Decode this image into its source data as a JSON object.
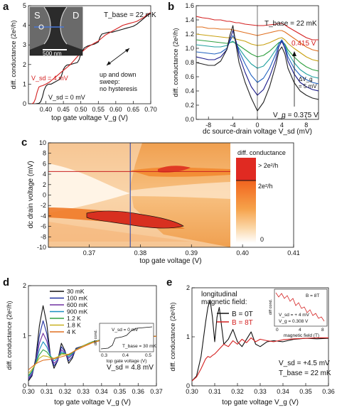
{
  "chart_data": [
    {
      "panel": "a",
      "type": "line",
      "xlabel": "top gate voltage V_g (V)",
      "ylabel": "diff. conductance (2e²/h)",
      "xlim": [
        0.35,
        0.7
      ],
      "ylim": [
        0,
        5
      ],
      "xticks": [
        "0.40",
        "0.45",
        "0.50",
        "0.55",
        "0.60",
        "0.65",
        "0.70"
      ],
      "yticks": [
        "0",
        "1",
        "2",
        "3",
        "4",
        "5"
      ],
      "series": [
        {
          "name": "V_sd = 0 mV",
          "color": "#111111",
          "x": [
            0.37,
            0.38,
            0.385,
            0.39,
            0.395,
            0.4,
            0.405,
            0.41,
            0.415,
            0.42,
            0.43,
            0.44,
            0.445,
            0.45,
            0.455,
            0.46,
            0.47,
            0.48,
            0.49,
            0.495,
            0.5,
            0.51,
            0.52,
            0.53,
            0.54,
            0.55,
            0.555,
            0.56,
            0.57,
            0.58,
            0.59,
            0.6,
            0.61,
            0.62,
            0.63,
            0.64,
            0.65,
            0.66,
            0.67,
            0.68,
            0.69,
            0.7
          ],
          "y": [
            0.0,
            0.02,
            0.1,
            0.35,
            0.7,
            0.9,
            0.98,
            1.0,
            1.0,
            1.05,
            1.15,
            1.25,
            1.45,
            1.75,
            1.9,
            1.97,
            2.0,
            2.05,
            2.1,
            2.25,
            2.55,
            2.85,
            2.95,
            3.0,
            3.05,
            3.15,
            3.4,
            3.55,
            3.6,
            3.65,
            3.65,
            3.7,
            3.75,
            3.8,
            3.85,
            3.9,
            3.95,
            4.05,
            4.2,
            4.35,
            4.5,
            4.6
          ]
        },
        {
          "name": "V_sd = 4 mV",
          "color": "#d42020",
          "x": [
            0.36,
            0.365,
            0.37,
            0.375,
            0.38,
            0.385,
            0.39,
            0.395,
            0.4,
            0.405,
            0.41,
            0.42,
            0.43,
            0.44,
            0.45,
            0.46,
            0.47,
            0.48,
            0.49,
            0.5,
            0.51,
            0.52,
            0.53,
            0.54,
            0.55,
            0.56,
            0.57,
            0.58,
            0.59,
            0.6,
            0.61,
            0.62,
            0.63,
            0.64,
            0.65,
            0.66,
            0.67,
            0.68,
            0.69,
            0.7
          ],
          "y": [
            0.0,
            0.05,
            0.25,
            0.6,
            0.85,
            0.9,
            0.92,
            0.96,
            1.0,
            1.05,
            1.1,
            1.25,
            1.4,
            1.55,
            1.7,
            1.85,
            2.0,
            2.2,
            2.4,
            2.6,
            2.75,
            2.9,
            3.0,
            3.1,
            3.2,
            3.35,
            3.5,
            3.6,
            3.7,
            3.8,
            3.9,
            4.0,
            4.05,
            4.1,
            4.15,
            4.2,
            4.3,
            4.4,
            4.55,
            4.65
          ]
        }
      ],
      "annotations": [
        "T_base = 22 mK",
        "V_sd = 4 mV",
        "V_sd = 0 mV",
        "up and down",
        "sweep:",
        "no hysteresis",
        "S",
        "D",
        "500 nm"
      ]
    },
    {
      "panel": "b",
      "type": "line",
      "xlabel": "dc source-drain voltage V_sd (mV)",
      "ylabel": "diff. conductance (2e²/h)",
      "xlim": [
        -10,
        10
      ],
      "ylim": [
        0,
        1.6
      ],
      "xticks": [
        "-8",
        "-4",
        "0",
        "4",
        "8"
      ],
      "yticks": [
        "0.0",
        "0.2",
        "0.4",
        "0.6",
        "0.8",
        "1.0",
        "1.2",
        "1.4",
        "1.6"
      ],
      "x": [
        -10,
        -9,
        -8,
        -7,
        -6,
        -5,
        -4.5,
        -4,
        -3.5,
        -3,
        -2,
        -1,
        0,
        1,
        2,
        3,
        3.5,
        4,
        4.5,
        5,
        6,
        7,
        8,
        9,
        10
      ],
      "series": [
        {
          "color": "#d42020",
          "values": [
            1.45,
            1.43,
            1.42,
            1.4,
            1.4,
            1.38,
            1.38,
            1.37,
            1.36,
            1.36,
            1.34,
            1.33,
            1.32,
            1.32,
            1.33,
            1.34,
            1.35,
            1.35,
            1.33,
            1.3,
            1.25,
            1.2,
            1.15,
            1.12,
            1.12
          ]
        },
        {
          "color": "#e07020",
          "values": [
            1.3,
            1.3,
            1.28,
            1.28,
            1.27,
            1.27,
            1.27,
            1.26,
            1.25,
            1.24,
            1.22,
            1.2,
            1.18,
            1.2,
            1.22,
            1.24,
            1.25,
            1.25,
            1.23,
            1.2,
            1.14,
            1.08,
            1.02,
            0.98,
            0.96
          ]
        },
        {
          "color": "#c8a010",
          "values": [
            1.2,
            1.19,
            1.18,
            1.17,
            1.16,
            1.15,
            1.15,
            1.15,
            1.13,
            1.12,
            1.1,
            1.06,
            1.04,
            1.05,
            1.08,
            1.12,
            1.14,
            1.15,
            1.12,
            1.07,
            1.0,
            0.94,
            0.88,
            0.84,
            0.82
          ]
        },
        {
          "color": "#30a040",
          "values": [
            1.12,
            1.11,
            1.1,
            1.09,
            1.08,
            1.07,
            1.08,
            1.09,
            1.07,
            1.04,
            0.98,
            0.92,
            0.88,
            0.9,
            0.96,
            1.04,
            1.08,
            1.1,
            1.06,
            0.98,
            0.88,
            0.8,
            0.74,
            0.7,
            0.68
          ]
        },
        {
          "color": "#20a0a0",
          "values": [
            1.05,
            1.04,
            1.03,
            1.02,
            1.02,
            1.04,
            1.08,
            1.1,
            1.06,
            1.0,
            0.88,
            0.78,
            0.72,
            0.75,
            0.85,
            0.98,
            1.06,
            1.1,
            1.04,
            0.94,
            0.8,
            0.7,
            0.64,
            0.6,
            0.58
          ]
        },
        {
          "color": "#2060c0",
          "values": [
            0.95,
            0.94,
            0.93,
            0.92,
            0.94,
            1.0,
            1.1,
            1.18,
            1.1,
            0.96,
            0.78,
            0.62,
            0.52,
            0.58,
            0.72,
            0.92,
            1.06,
            1.12,
            1.04,
            0.88,
            0.72,
            0.62,
            0.56,
            0.52,
            0.5
          ]
        },
        {
          "color": "#1a1a8a",
          "values": [
            0.88,
            0.86,
            0.84,
            0.84,
            0.88,
            0.98,
            1.12,
            1.25,
            1.1,
            0.9,
            0.66,
            0.46,
            0.34,
            0.42,
            0.6,
            0.84,
            1.02,
            1.1,
            1.0,
            0.82,
            0.64,
            0.52,
            0.46,
            0.42,
            0.4
          ]
        },
        {
          "color": "#222222",
          "values": [
            0.8,
            0.78,
            0.76,
            0.76,
            0.82,
            0.98,
            1.18,
            1.32,
            1.05,
            0.8,
            0.52,
            0.3,
            0.12,
            0.24,
            0.46,
            0.76,
            0.96,
            1.02,
            0.92,
            0.72,
            0.52,
            0.4,
            0.34,
            0.3,
            0.28
          ]
        }
      ],
      "annotations": [
        "T_base = 22 mK",
        "0.415 V",
        "ΔV_g",
        "= 5 mV",
        "V_g = 0.375 V"
      ]
    },
    {
      "panel": "c",
      "type": "heatmap",
      "xlabel": "top gate voltage (V)",
      "ylabel": "dc drain voltage (mV)",
      "xlim": [
        0.362,
        0.41
      ],
      "ylim": [
        -10,
        10
      ],
      "xticks": [
        "0.37",
        "0.38",
        "0.39",
        "0.40",
        "0.41"
      ],
      "yticks": [
        "10",
        "8",
        "6",
        "4",
        "2",
        "0",
        "-2",
        "-4",
        "-6",
        "-8",
        "-10"
      ],
      "cut_x": 0.38,
      "cut_y": 4,
      "colorbar": {
        "title": "diff. conductance",
        "labels": [
          "> 2e²/h",
          "2e²/h",
          "0"
        ]
      }
    },
    {
      "panel": "d",
      "type": "line",
      "xlabel": "top gate voltage V_g (V)",
      "ylabel": "diff. conductance (2e²/h)",
      "xlim": [
        0.3,
        0.37
      ],
      "ylim": [
        0,
        2
      ],
      "xticks": [
        "0.30",
        "0.31",
        "0.32",
        "0.33",
        "0.34",
        "0.35",
        "0.36",
        "0.37"
      ],
      "yticks": [
        "0",
        "1",
        "2"
      ],
      "x": [
        0.3,
        0.302,
        0.304,
        0.306,
        0.308,
        0.31,
        0.312,
        0.314,
        0.316,
        0.318,
        0.32,
        0.322,
        0.324,
        0.326,
        0.33,
        0.335,
        0.34,
        0.345,
        0.35,
        0.355,
        0.36,
        0.365,
        0.37
      ],
      "series": [
        {
          "name": "30 mK",
          "color": "#111111",
          "values": [
            0.1,
            0.2,
            0.55,
            1.2,
            1.6,
            1.25,
            0.6,
            0.35,
            0.5,
            0.85,
            0.7,
            0.45,
            0.55,
            0.75,
            0.8,
            0.88,
            0.92,
            0.95,
            0.96,
            0.97,
            0.98,
            0.98,
            0.99
          ]
        },
        {
          "name": "100 mK",
          "color": "#2030a0",
          "values": [
            0.12,
            0.22,
            0.5,
            1.0,
            1.3,
            1.05,
            0.6,
            0.4,
            0.5,
            0.78,
            0.68,
            0.5,
            0.58,
            0.74,
            0.8,
            0.88,
            0.92,
            0.95,
            0.96,
            0.97,
            0.98,
            0.98,
            0.99
          ]
        },
        {
          "name": "600 mK",
          "color": "#7030a0",
          "values": [
            0.15,
            0.25,
            0.48,
            0.85,
            1.05,
            0.9,
            0.6,
            0.45,
            0.52,
            0.72,
            0.66,
            0.55,
            0.62,
            0.72,
            0.8,
            0.88,
            0.92,
            0.95,
            0.96,
            0.97,
            0.98,
            0.98,
            0.99
          ]
        },
        {
          "name": "900 mK",
          "color": "#1a90c0",
          "values": [
            0.18,
            0.28,
            0.46,
            0.72,
            0.88,
            0.78,
            0.6,
            0.5,
            0.55,
            0.68,
            0.65,
            0.58,
            0.64,
            0.72,
            0.8,
            0.88,
            0.92,
            0.95,
            0.96,
            0.97,
            0.98,
            0.98,
            0.99
          ]
        },
        {
          "name": "1.2 K",
          "color": "#30a040",
          "values": [
            0.2,
            0.3,
            0.45,
            0.62,
            0.72,
            0.68,
            0.58,
            0.54,
            0.57,
            0.65,
            0.64,
            0.61,
            0.66,
            0.72,
            0.8,
            0.88,
            0.92,
            0.95,
            0.96,
            0.97,
            0.98,
            0.98,
            0.99
          ]
        },
        {
          "name": "1.8 K",
          "color": "#c8b020",
          "values": [
            0.25,
            0.33,
            0.44,
            0.55,
            0.6,
            0.59,
            0.56,
            0.55,
            0.58,
            0.62,
            0.63,
            0.63,
            0.67,
            0.72,
            0.8,
            0.87,
            0.92,
            0.95,
            0.96,
            0.97,
            0.98,
            0.98,
            0.99
          ]
        },
        {
          "name": "4 K",
          "color": "#e07020",
          "values": [
            0.32,
            0.38,
            0.44,
            0.48,
            0.51,
            0.52,
            0.53,
            0.54,
            0.56,
            0.58,
            0.6,
            0.63,
            0.67,
            0.71,
            0.78,
            0.86,
            0.91,
            0.94,
            0.96,
            0.97,
            0.98,
            0.98,
            0.99
          ]
        }
      ],
      "annotations": [
        "V_sd = 4.8 mV"
      ],
      "inset": {
        "xlabel": "top gate voltage (V)",
        "ylabel": "diff cond.",
        "xticks": [
          "0.3",
          "0.4",
          "0.5"
        ],
        "annotations": [
          "V_sd = 0 mV",
          "T_base = 30 mK"
        ]
      }
    },
    {
      "panel": "e",
      "type": "line",
      "xlabel": "top gate voltage V_g (V)",
      "ylabel": "diff. conductance (2e²/h)",
      "xlim": [
        0.3,
        0.36
      ],
      "ylim": [
        0,
        2
      ],
      "xticks": [
        "0.30",
        "0.31",
        "0.32",
        "0.33",
        "0.34",
        "0.35",
        "0.36"
      ],
      "yticks": [
        "0",
        "1",
        "2"
      ],
      "x": [
        0.3,
        0.302,
        0.304,
        0.306,
        0.307,
        0.308,
        0.309,
        0.31,
        0.311,
        0.312,
        0.314,
        0.316,
        0.318,
        0.32,
        0.322,
        0.324,
        0.326,
        0.328,
        0.33,
        0.333,
        0.336,
        0.34,
        0.345,
        0.35,
        0.355,
        0.36
      ],
      "series": [
        {
          "name": "B = 0T",
          "color": "#111111",
          "values": [
            0.1,
            0.2,
            0.6,
            1.3,
            1.6,
            1.75,
            1.4,
            0.9,
            1.4,
            1.6,
            0.85,
            0.95,
            1.15,
            0.9,
            0.8,
            0.95,
            1.1,
            0.85,
            0.8,
            0.9,
            0.92,
            0.9,
            0.95,
            0.97,
            0.96,
            0.97
          ]
        },
        {
          "name": "B = 8T",
          "color": "#d42020",
          "values": [
            0.1,
            0.18,
            0.35,
            0.55,
            0.6,
            0.58,
            0.62,
            0.65,
            0.7,
            0.75,
            0.85,
            0.8,
            0.92,
            0.85,
            0.95,
            0.88,
            0.98,
            0.9,
            0.95,
            0.92,
            0.9,
            0.94,
            0.96,
            0.97,
            0.98,
            0.98
          ]
        }
      ],
      "annotations": [
        "longitudinal",
        "magnetic field:",
        "V_sd = +4.5 mV",
        "T_base = 22 mK"
      ],
      "inset": {
        "xlabel": "magnetic field (T)",
        "ylabel": "diff cond.",
        "xticks": [
          "0",
          "4",
          "8"
        ],
        "annotations": [
          "B = 8T",
          "V_sd = + 4 mV",
          "V_g = 0.308 V"
        ]
      }
    }
  ]
}
